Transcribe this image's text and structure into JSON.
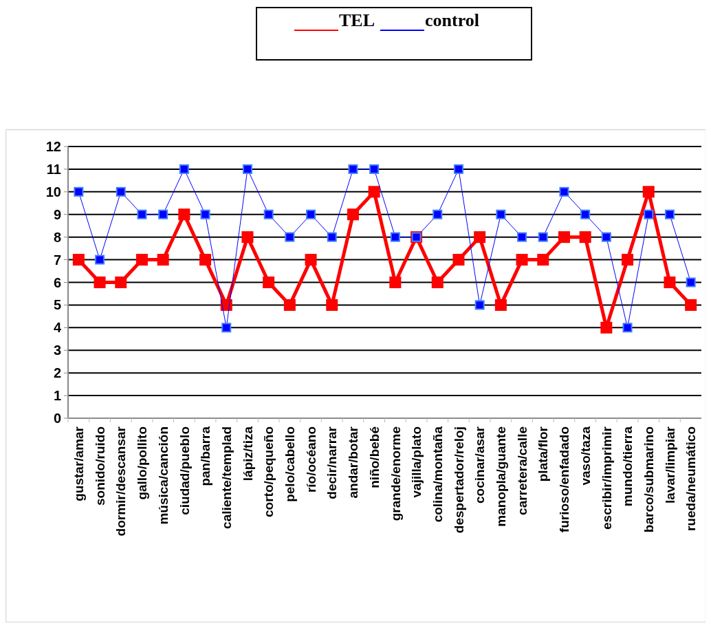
{
  "chart_data": {
    "type": "line",
    "categories": [
      "gustar/amar",
      "sonido/ruido",
      "dormir/descansar",
      "gallo/pollito",
      "música/canción",
      "ciudad/pueblo",
      "pan/barra",
      "caliente/templad",
      "lápiz/tiza",
      "corto/pequeño",
      "pelo/cabello",
      "río/océano",
      "decir/narrar",
      "andar/botar",
      "niño/bebé",
      "grande/enorme",
      "vajilla/plato",
      "colina/montaña",
      "despertador/reloj",
      "cocinar/asar",
      "manopla/guante",
      "carretera/calle",
      "plata/flor",
      "furioso/enfadado",
      "vaso/taza",
      "escribir/imprimir",
      "mundo/tierra",
      "barco/submarino",
      "lavar/limpiar",
      "rueda/neumático"
    ],
    "series": [
      {
        "name": "TEL",
        "color": "#ff0000",
        "values": [
          7,
          6,
          6,
          7,
          7,
          9,
          7,
          5,
          8,
          6,
          5,
          7,
          5,
          9,
          10,
          6,
          8,
          6,
          7,
          8,
          5,
          7,
          7,
          8,
          8,
          4,
          7,
          10,
          6,
          5
        ]
      },
      {
        "name": "control",
        "color": "#0000ff",
        "values": [
          10,
          7,
          10,
          9,
          9,
          11,
          9,
          4,
          11,
          9,
          8,
          9,
          8,
          11,
          11,
          8,
          8,
          9,
          11,
          5,
          9,
          8,
          8,
          10,
          9,
          8,
          4,
          9,
          9,
          6
        ]
      }
    ],
    "ylim": [
      0,
      12
    ],
    "yticks": [
      0,
      1,
      2,
      3,
      4,
      5,
      6,
      7,
      8,
      9,
      10,
      11,
      12
    ],
    "grid": "y",
    "legend": "top",
    "marker": "square",
    "line_style": "solid"
  }
}
